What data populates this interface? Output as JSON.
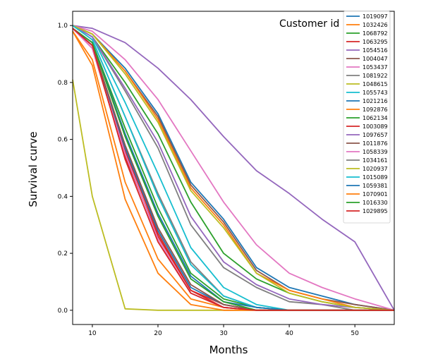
{
  "chart_data": {
    "type": "line",
    "title": "",
    "xlabel": "Months",
    "ylabel": "Survival curve",
    "xlim": [
      7,
      56
    ],
    "ylim": [
      -0.05,
      1.05
    ],
    "x_ticks": [
      10,
      20,
      30,
      40,
      50
    ],
    "y_ticks": [
      0.0,
      0.2,
      0.4,
      0.6,
      0.8,
      1.0
    ],
    "x_tick_labels": [
      "10",
      "20",
      "30",
      "40",
      "50"
    ],
    "y_tick_labels": [
      "0.0",
      "0.2",
      "0.4",
      "0.6",
      "0.8",
      "1.0"
    ],
    "grid": false,
    "legend_title": "Customer id",
    "legend_position": "top-right",
    "x": [
      7,
      10,
      15,
      20,
      25,
      30,
      35,
      40,
      45,
      50,
      56
    ],
    "series": [
      {
        "name": "1019097",
        "color": "#1f77b4",
        "values": [
          1.0,
          0.97,
          0.85,
          0.69,
          0.45,
          0.32,
          0.15,
          0.08,
          0.05,
          0.02,
          0.0
        ]
      },
      {
        "name": "1032426",
        "color": "#ff7f0e",
        "values": [
          0.98,
          0.88,
          0.45,
          0.18,
          0.04,
          0.01,
          0.0,
          0.0,
          0.0,
          0.0,
          0.0
        ]
      },
      {
        "name": "1068792",
        "color": "#2ca02c",
        "values": [
          1.0,
          0.96,
          0.8,
          0.62,
          0.38,
          0.2,
          0.11,
          0.06,
          0.03,
          0.01,
          0.0
        ]
      },
      {
        "name": "1063295",
        "color": "#d62728",
        "values": [
          0.99,
          0.93,
          0.56,
          0.27,
          0.07,
          0.02,
          0.0,
          0.0,
          0.0,
          0.0,
          0.0
        ]
      },
      {
        "name": "1054516",
        "color": "#9467bd",
        "values": [
          1.0,
          0.99,
          0.94,
          0.85,
          0.74,
          0.61,
          0.49,
          0.41,
          0.32,
          0.24,
          0.0
        ]
      },
      {
        "name": "1004047",
        "color": "#8c564b",
        "values": [
          1.0,
          0.97,
          0.84,
          0.68,
          0.44,
          0.31,
          0.14,
          0.07,
          0.04,
          0.02,
          0.0
        ]
      },
      {
        "name": "1053437",
        "color": "#e377c2",
        "values": [
          1.0,
          0.98,
          0.88,
          0.74,
          0.56,
          0.38,
          0.23,
          0.13,
          0.08,
          0.04,
          0.0
        ]
      },
      {
        "name": "1081922",
        "color": "#7f7f7f",
        "values": [
          1.0,
          0.96,
          0.77,
          0.57,
          0.3,
          0.15,
          0.08,
          0.03,
          0.02,
          0.0,
          0.0
        ]
      },
      {
        "name": "1048615",
        "color": "#bcbd22",
        "values": [
          0.81,
          0.4,
          0.005,
          0.0,
          0.0,
          0.0,
          0.0,
          0.0,
          0.0,
          0.0,
          0.0
        ]
      },
      {
        "name": "1055743",
        "color": "#17becf",
        "values": [
          1.0,
          0.96,
          0.73,
          0.48,
          0.22,
          0.08,
          0.02,
          0.0,
          0.0,
          0.0,
          0.0
        ]
      },
      {
        "name": "1021216",
        "color": "#1f77b4",
        "values": [
          0.99,
          0.93,
          0.57,
          0.28,
          0.08,
          0.02,
          0.0,
          0.0,
          0.0,
          0.0,
          0.0
        ]
      },
      {
        "name": "1092876",
        "color": "#ff7f0e",
        "values": [
          1.0,
          0.97,
          0.84,
          0.67,
          0.43,
          0.3,
          0.13,
          0.07,
          0.04,
          0.01,
          0.0
        ]
      },
      {
        "name": "1062134",
        "color": "#2ca02c",
        "values": [
          0.99,
          0.94,
          0.64,
          0.36,
          0.13,
          0.04,
          0.01,
          0.0,
          0.0,
          0.0,
          0.0
        ]
      },
      {
        "name": "1003089",
        "color": "#d62728",
        "values": [
          0.99,
          0.92,
          0.54,
          0.26,
          0.07,
          0.01,
          0.0,
          0.0,
          0.0,
          0.0,
          0.0
        ]
      },
      {
        "name": "1097657",
        "color": "#9467bd",
        "values": [
          1.0,
          0.96,
          0.78,
          0.59,
          0.33,
          0.17,
          0.09,
          0.04,
          0.02,
          0.01,
          0.0
        ]
      },
      {
        "name": "1011876",
        "color": "#8c564b",
        "values": [
          0.99,
          0.93,
          0.58,
          0.29,
          0.09,
          0.02,
          0.0,
          0.0,
          0.0,
          0.0,
          0.0
        ]
      },
      {
        "name": "1058339",
        "color": "#e377c2",
        "values": [
          0.99,
          0.92,
          0.55,
          0.25,
          0.06,
          0.01,
          0.0,
          0.0,
          0.0,
          0.0,
          0.0
        ]
      },
      {
        "name": "1034161",
        "color": "#7f7f7f",
        "values": [
          1.0,
          0.95,
          0.68,
          0.41,
          0.17,
          0.05,
          0.01,
          0.0,
          0.0,
          0.0,
          0.0
        ]
      },
      {
        "name": "1020937",
        "color": "#bcbd22",
        "values": [
          1.0,
          0.97,
          0.83,
          0.66,
          0.42,
          0.29,
          0.13,
          0.06,
          0.03,
          0.01,
          0.0
        ]
      },
      {
        "name": "1015089",
        "color": "#17becf",
        "values": [
          1.0,
          0.95,
          0.68,
          0.4,
          0.16,
          0.05,
          0.01,
          0.0,
          0.0,
          0.0,
          0.0
        ]
      },
      {
        "name": "1059381",
        "color": "#1f77b4",
        "values": [
          0.99,
          0.94,
          0.62,
          0.34,
          0.12,
          0.03,
          0.01,
          0.0,
          0.0,
          0.0,
          0.0
        ]
      },
      {
        "name": "1070901",
        "color": "#ff7f0e",
        "values": [
          0.98,
          0.86,
          0.39,
          0.13,
          0.02,
          0.0,
          0.0,
          0.0,
          0.0,
          0.0,
          0.0
        ]
      },
      {
        "name": "1016330",
        "color": "#2ca02c",
        "values": [
          0.99,
          0.94,
          0.61,
          0.33,
          0.11,
          0.03,
          0.0,
          0.0,
          0.0,
          0.0,
          0.0
        ]
      },
      {
        "name": "1029895",
        "color": "#d62728",
        "values": [
          0.99,
          0.93,
          0.53,
          0.24,
          0.06,
          0.01,
          0.0,
          0.0,
          0.0,
          0.0,
          0.0
        ]
      }
    ]
  }
}
